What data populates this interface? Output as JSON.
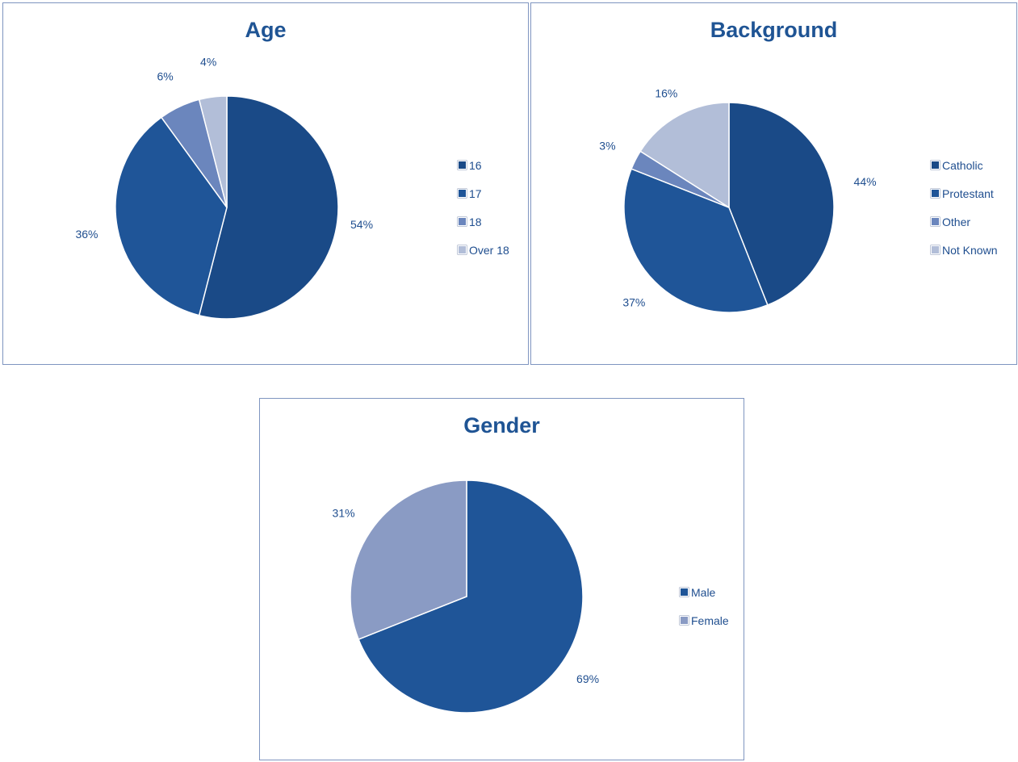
{
  "chart_data": [
    {
      "id": "age",
      "type": "pie",
      "title": "Age",
      "categories": [
        "16",
        "17",
        "18",
        "Over 18"
      ],
      "values": [
        54,
        36,
        6,
        4
      ],
      "labels": [
        "54%",
        "36%",
        "6%",
        "4%"
      ],
      "colors": [
        "#1a4a87",
        "#1f5598",
        "#6b86bd",
        "#b2bed8"
      ],
      "legend_placement": "right"
    },
    {
      "id": "background",
      "type": "pie",
      "title": "Background",
      "categories": [
        "Catholic",
        "Protestant",
        "Other",
        "Not Known"
      ],
      "values": [
        44,
        37,
        3,
        16
      ],
      "labels": [
        "44%",
        "37%",
        "3%",
        "16%"
      ],
      "colors": [
        "#1a4a87",
        "#1f5598",
        "#6b86bd",
        "#b2bed8"
      ],
      "legend_placement": "right"
    },
    {
      "id": "gender",
      "type": "pie",
      "title": "Gender",
      "categories": [
        "Male",
        "Female"
      ],
      "values": [
        69,
        31
      ],
      "labels": [
        "69%",
        "31%"
      ],
      "colors": [
        "#1f5598",
        "#8a9bc4"
      ],
      "legend_placement": "right"
    }
  ]
}
